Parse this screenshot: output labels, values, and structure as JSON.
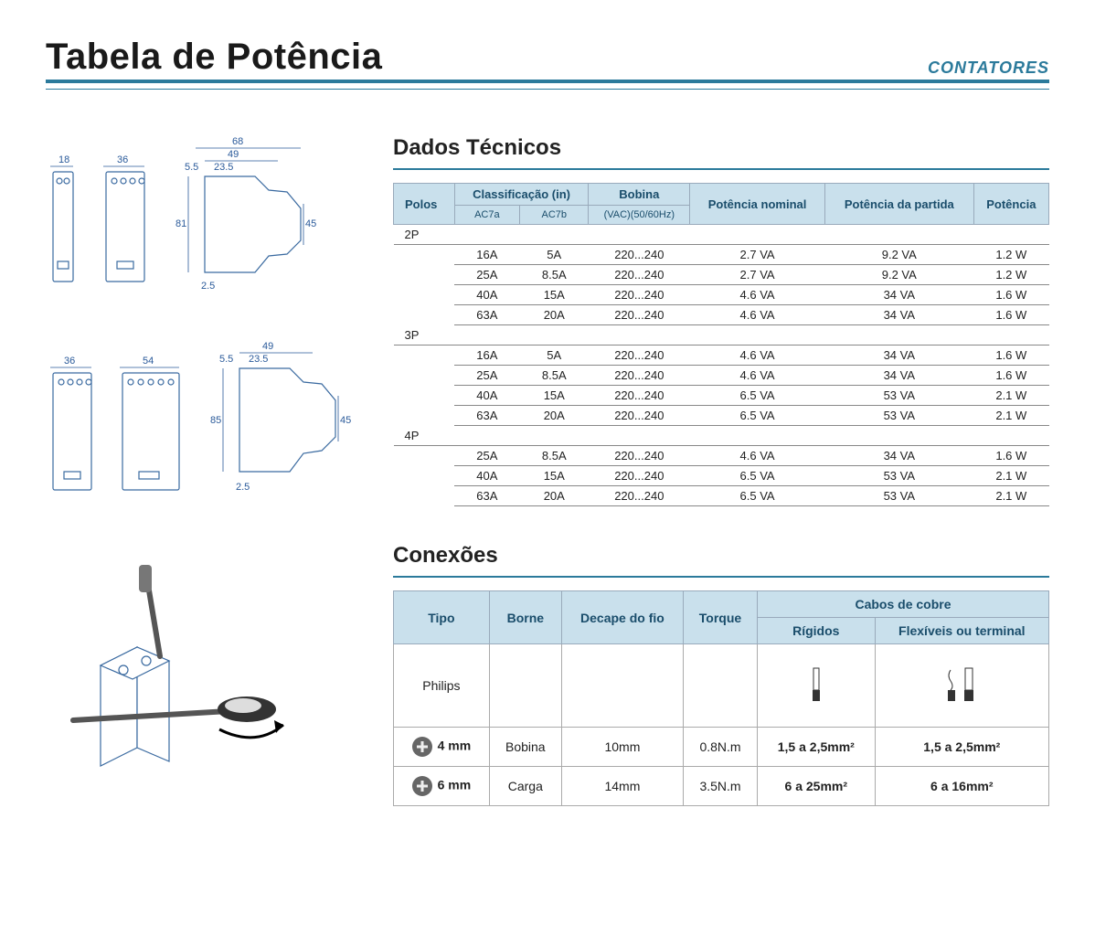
{
  "header": {
    "title": "Tabela de Potência",
    "category": "CONTATORES"
  },
  "colors": {
    "accent": "#2b7a9b",
    "header_bg": "#c9e0ec",
    "header_text": "#1a4d6b",
    "rule": "#888888",
    "diagram_stroke": "#3a6aa0"
  },
  "diagrams": {
    "row1": {
      "front_a_width": "18",
      "front_b_width": "36",
      "side_width_outer": "68",
      "side_width_inner1": "49",
      "side_width_inner2": "23.5",
      "side_lead": "5.5",
      "side_height": "81",
      "side_back_height": "45",
      "base_offset": "2.5"
    },
    "row2": {
      "front_a_width": "36",
      "front_b_width": "54",
      "side_width_inner1": "49",
      "side_width_inner2": "23.5",
      "side_lead": "5.5",
      "side_height": "85",
      "side_back_height": "45",
      "base_offset": "2.5"
    }
  },
  "tech": {
    "section_title": "Dados Técnicos",
    "columns": {
      "polos": "Polos",
      "class_group": "Classificação (in)",
      "class_a": "AC7a",
      "class_b": "AC7b",
      "bobina": "Bobina",
      "bobina_sub": "(VAC)(50/60Hz)",
      "pot_nominal": "Potência nominal",
      "pot_partida": "Potência da partida",
      "potencia": "Potência"
    },
    "groups": [
      {
        "label": "2P",
        "rows": [
          {
            "ac7a": "16A",
            "ac7b": "5A",
            "bobina": "220...240",
            "nom": "2.7 VA",
            "part": "9.2 VA",
            "pot": "1.2 W"
          },
          {
            "ac7a": "25A",
            "ac7b": "8.5A",
            "bobina": "220...240",
            "nom": "2.7 VA",
            "part": "9.2 VA",
            "pot": "1.2 W"
          },
          {
            "ac7a": "40A",
            "ac7b": "15A",
            "bobina": "220...240",
            "nom": "4.6 VA",
            "part": "34 VA",
            "pot": "1.6 W"
          },
          {
            "ac7a": "63A",
            "ac7b": "20A",
            "bobina": "220...240",
            "nom": "4.6 VA",
            "part": "34 VA",
            "pot": "1.6 W"
          }
        ]
      },
      {
        "label": "3P",
        "rows": [
          {
            "ac7a": "16A",
            "ac7b": "5A",
            "bobina": "220...240",
            "nom": "4.6 VA",
            "part": "34 VA",
            "pot": "1.6 W"
          },
          {
            "ac7a": "25A",
            "ac7b": "8.5A",
            "bobina": "220...240",
            "nom": "4.6 VA",
            "part": "34 VA",
            "pot": "1.6 W"
          },
          {
            "ac7a": "40A",
            "ac7b": "15A",
            "bobina": "220...240",
            "nom": "6.5 VA",
            "part": "53 VA",
            "pot": "2.1 W"
          },
          {
            "ac7a": "63A",
            "ac7b": "20A",
            "bobina": "220...240",
            "nom": "6.5 VA",
            "part": "53 VA",
            "pot": "2.1 W"
          }
        ]
      },
      {
        "label": "4P",
        "rows": [
          {
            "ac7a": "25A",
            "ac7b": "8.5A",
            "bobina": "220...240",
            "nom": "4.6 VA",
            "part": "34 VA",
            "pot": "1.6 W"
          },
          {
            "ac7a": "40A",
            "ac7b": "15A",
            "bobina": "220...240",
            "nom": "6.5 VA",
            "part": "53 VA",
            "pot": "2.1 W"
          },
          {
            "ac7a": "63A",
            "ac7b": "20A",
            "bobina": "220...240",
            "nom": "6.5 VA",
            "part": "53 VA",
            "pot": "2.1 W"
          }
        ]
      }
    ]
  },
  "conn": {
    "section_title": "Conexões",
    "columns": {
      "tipo": "Tipo",
      "borne": "Borne",
      "decape": "Decape do fio",
      "torque": "Torque",
      "cabos_group": "Cabos de cobre",
      "rigidos": "Rígidos",
      "flex": "Flexíveis ou terminal"
    },
    "rows": [
      {
        "tipo": "Philips",
        "borne": "",
        "decape": "",
        "torque": "",
        "rigidos_icon": true,
        "flex_icon": true
      },
      {
        "tipo_icon": true,
        "tipo": "4 mm",
        "borne": "Bobina",
        "decape": "10mm",
        "torque": "0.8N.m",
        "rigidos": "1,5 a 2,5mm²",
        "flex": "1,5 a 2,5mm²"
      },
      {
        "tipo_icon": true,
        "tipo": "6 mm",
        "borne": "Carga",
        "decape": "14mm",
        "torque": "3.5N.m",
        "rigidos": "6 a 25mm²",
        "flex": "6 a 16mm²"
      }
    ]
  }
}
